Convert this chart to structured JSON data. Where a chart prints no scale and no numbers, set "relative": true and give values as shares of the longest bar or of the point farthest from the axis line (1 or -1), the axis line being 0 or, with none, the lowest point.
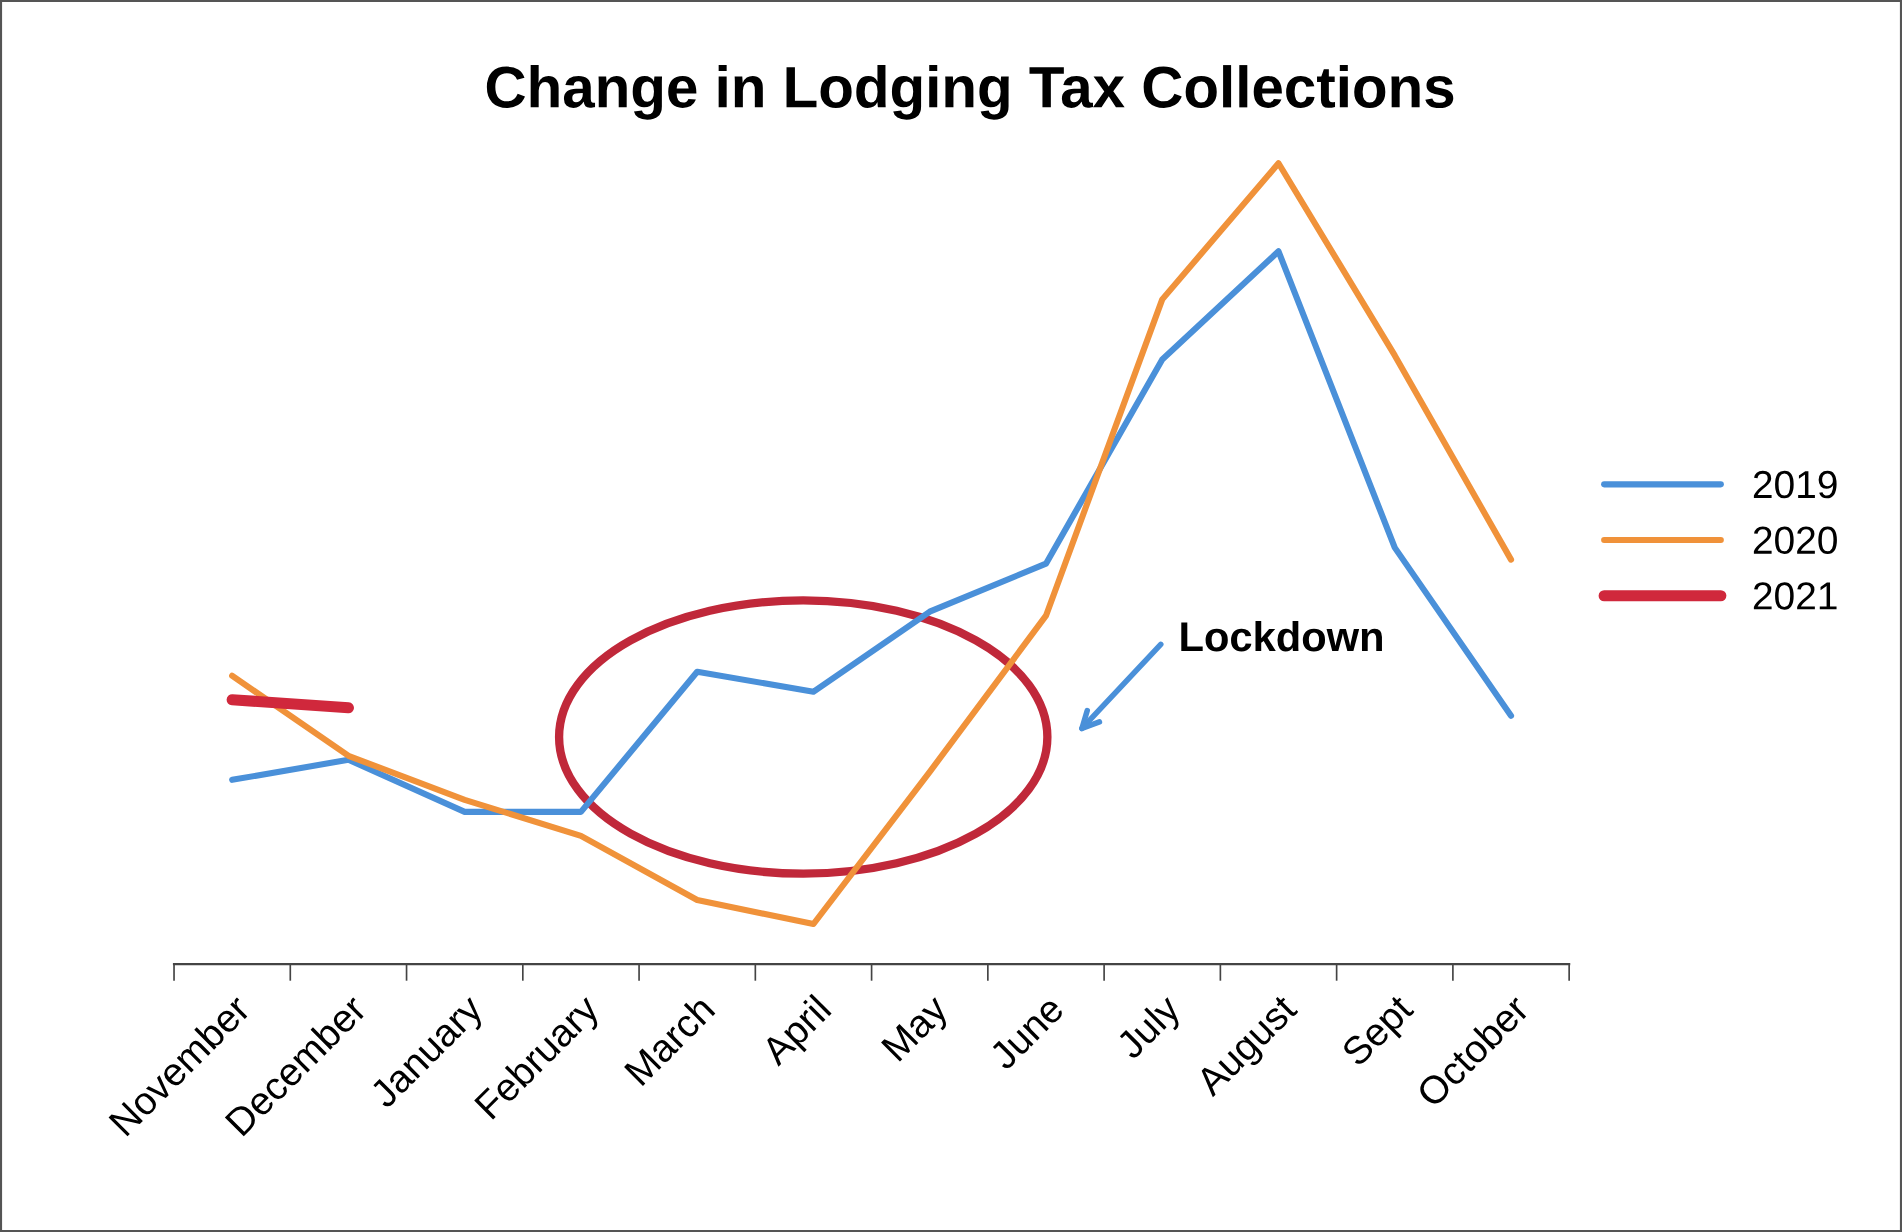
{
  "chart_data": {
    "type": "line",
    "title": "Change in Lodging Tax Collections",
    "relative": true,
    "categories": [
      "November",
      "December",
      "January",
      "February",
      "March",
      "April",
      "May",
      "June",
      "July",
      "August",
      "Sept",
      "October"
    ],
    "series": [
      {
        "name": "2019",
        "color": "#4a90d9",
        "values": [
          0.23,
          0.255,
          0.19,
          0.19,
          0.365,
          0.34,
          0.44,
          0.5,
          0.755,
          0.89,
          0.52,
          0.31
        ]
      },
      {
        "name": "2020",
        "color": "#f0923a",
        "values": [
          0.36,
          0.26,
          0.205,
          0.16,
          0.08,
          0.05,
          0.24,
          0.435,
          0.83,
          1,
          0.76,
          0.505
        ]
      },
      {
        "name": "2021",
        "color": "#d0283c",
        "values": [
          0.33,
          0.32,
          null,
          null,
          null,
          null,
          null,
          null,
          null,
          null,
          null,
          null
        ]
      }
    ],
    "annotations": [
      "Lockdown"
    ],
    "legend": "right",
    "grid": false,
    "marker": "none",
    "line_style": "solid"
  }
}
